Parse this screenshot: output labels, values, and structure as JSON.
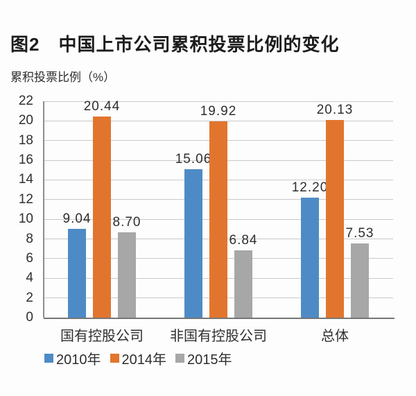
{
  "page": {
    "background": "#fdfdfd"
  },
  "chart_data": {
    "type": "bar",
    "title": "图2　中国上市公司累积投票比例的变化",
    "ylabel": "累积投票比例（%）",
    "categories": [
      {
        "id": "state-controlled",
        "label": "国有控股公司"
      },
      {
        "id": "non-state-controlled",
        "label": "非国有控股公司"
      },
      {
        "id": "overall",
        "label": "总体"
      }
    ],
    "series": [
      {
        "id": "year-2010",
        "name": "2010年",
        "color": "#4E8BC6",
        "values": [
          9.04,
          15.06,
          12.2
        ]
      },
      {
        "id": "year-2014",
        "name": "2014年",
        "color": "#E2752E",
        "values": [
          20.44,
          19.92,
          20.13
        ]
      },
      {
        "id": "year-2015",
        "name": "2015年",
        "color": "#A7A7A7",
        "values": [
          8.7,
          6.84,
          7.53
        ]
      }
    ],
    "ylim": [
      0,
      22
    ],
    "yticks": [
      0,
      2,
      4,
      6,
      8,
      10,
      12,
      14,
      16,
      18,
      20,
      22
    ],
    "grid": true,
    "legend_position": "bottom-left",
    "value_label_decimals": 2
  },
  "colors": {
    "title_text": "#1c1c1c",
    "text": "#2e2e2e",
    "gridline": "#c9c9c9",
    "x_axis": "#757575",
    "y_axis": "#8d8d8d"
  }
}
